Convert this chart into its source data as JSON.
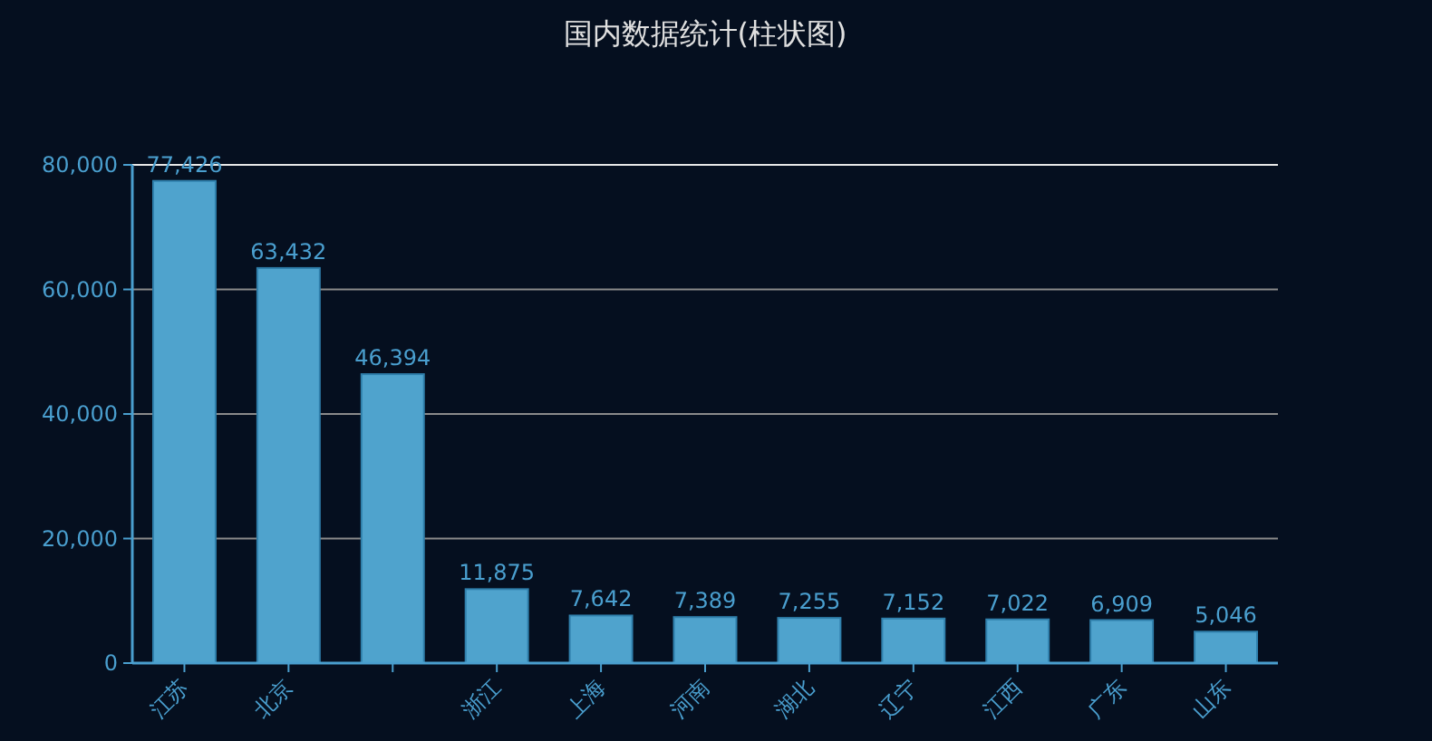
{
  "chart_data": {
    "type": "bar",
    "title": "国内数据统计(柱状图)",
    "categories": [
      "江苏",
      "北京",
      null,
      "浙江",
      "上海",
      "河南",
      "湖北",
      "辽宁",
      "江西",
      "广东",
      "山东"
    ],
    "values": [
      77426,
      63432,
      46394,
      11875,
      7642,
      7389,
      7255,
      7152,
      7022,
      6909,
      5046
    ],
    "value_labels": [
      "77,426",
      "63,432",
      "46,394",
      "11,875",
      "7,642",
      "7,389",
      "7,255",
      "7,152",
      "7,022",
      "6,909",
      "5,046"
    ],
    "color": "#4fa3cd",
    "ylim": [
      0,
      80000
    ],
    "yticks": [
      {
        "value": 0,
        "label": "0"
      },
      {
        "value": 20000,
        "label": "20,000"
      },
      {
        "value": 40000,
        "label": "40,000"
      },
      {
        "value": 60000,
        "label": "60,000"
      },
      {
        "value": 80000,
        "label": "80,000"
      }
    ],
    "grid": "y"
  }
}
